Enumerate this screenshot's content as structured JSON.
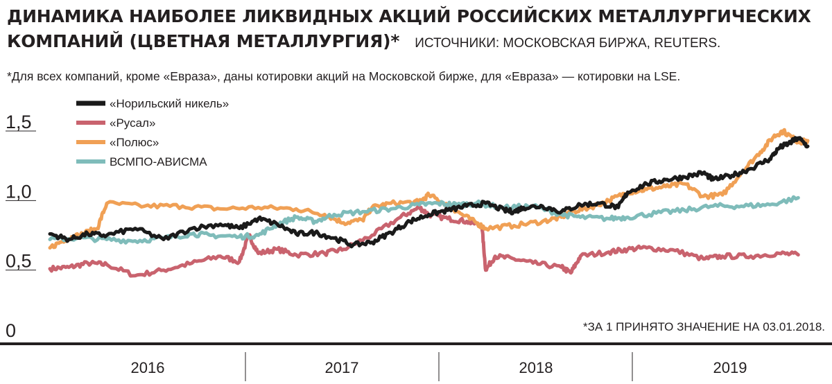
{
  "title": "ДИНАМИКА НАИБОЛЕЕ ЛИКВИДНЫХ АКЦИЙ РОССИЙСКИХ МЕТАЛЛУРГИЧЕСКИХ КОМПАНИЙ (ЦВЕТНАЯ МЕТАЛЛУРГИЯ)*",
  "source": "ИСТОЧНИКИ: МОСКОВСКАЯ БИРЖА, REUTERS.",
  "footnote": "*Для всех компаний, кроме «Евраза», даны котировки акций на Московской бирже, для «Евраза» — котировки на LSE.",
  "normalization_note": "*ЗА 1 ПРИНЯТО ЗНАЧЕНИЕ НА 03.01.2018.",
  "chart_data": {
    "type": "line",
    "xlim": [
      2016.0,
      2019.9
    ],
    "ylim": [
      0,
      1.5
    ],
    "yticks": [
      {
        "value": 0,
        "label": "0"
      },
      {
        "value": 0.5,
        "label": "0,5"
      },
      {
        "value": 1.0,
        "label": "1,0"
      },
      {
        "value": 1.5,
        "label": "1,5"
      }
    ],
    "year_labels": [
      "2016",
      "2017",
      "2018",
      "2019"
    ],
    "legend_position": "top-left",
    "series": [
      {
        "name": "«Норильский никель»",
        "color": "#1a1a1a",
        "points": [
          [
            2016.0,
            0.76
          ],
          [
            2016.1,
            0.72
          ],
          [
            2016.2,
            0.76
          ],
          [
            2016.3,
            0.75
          ],
          [
            2016.45,
            0.8
          ],
          [
            2016.6,
            0.72
          ],
          [
            2016.75,
            0.8
          ],
          [
            2016.9,
            0.83
          ],
          [
            2017.0,
            0.8
          ],
          [
            2017.1,
            0.87
          ],
          [
            2017.2,
            0.83
          ],
          [
            2017.3,
            0.76
          ],
          [
            2017.4,
            0.77
          ],
          [
            2017.5,
            0.73
          ],
          [
            2017.6,
            0.68
          ],
          [
            2017.7,
            0.7
          ],
          [
            2017.8,
            0.77
          ],
          [
            2017.9,
            0.85
          ],
          [
            2018.0,
            0.9
          ],
          [
            2018.1,
            0.93
          ],
          [
            2018.2,
            0.96
          ],
          [
            2018.3,
            0.98
          ],
          [
            2018.4,
            0.93
          ],
          [
            2018.45,
            0.92
          ],
          [
            2018.5,
            0.95
          ],
          [
            2018.6,
            0.96
          ],
          [
            2018.7,
            0.92
          ],
          [
            2018.8,
            0.97
          ],
          [
            2018.9,
            0.98
          ],
          [
            2019.0,
            0.95
          ],
          [
            2019.05,
            1.06
          ],
          [
            2019.15,
            1.12
          ],
          [
            2019.25,
            1.15
          ],
          [
            2019.35,
            1.17
          ],
          [
            2019.45,
            1.2
          ],
          [
            2019.5,
            1.15
          ],
          [
            2019.6,
            1.18
          ],
          [
            2019.7,
            1.23
          ],
          [
            2019.8,
            1.3
          ],
          [
            2019.85,
            1.38
          ],
          [
            2019.9,
            1.41
          ],
          [
            2019.95,
            1.45
          ],
          [
            2020.0,
            1.39
          ]
        ]
      },
      {
        "name": "«Русал»",
        "color": "#c9636e",
        "points": [
          [
            2016.0,
            0.51
          ],
          [
            2016.1,
            0.52
          ],
          [
            2016.2,
            0.55
          ],
          [
            2016.3,
            0.54
          ],
          [
            2016.45,
            0.46
          ],
          [
            2016.6,
            0.5
          ],
          [
            2016.75,
            0.55
          ],
          [
            2016.9,
            0.6
          ],
          [
            2017.0,
            0.56
          ],
          [
            2017.05,
            0.75
          ],
          [
            2017.1,
            0.62
          ],
          [
            2017.2,
            0.65
          ],
          [
            2017.3,
            0.61
          ],
          [
            2017.45,
            0.62
          ],
          [
            2017.55,
            0.65
          ],
          [
            2017.7,
            0.75
          ],
          [
            2017.85,
            0.88
          ],
          [
            2017.95,
            0.95
          ],
          [
            2018.0,
            0.9
          ],
          [
            2018.1,
            0.87
          ],
          [
            2018.2,
            0.85
          ],
          [
            2018.28,
            0.82
          ],
          [
            2018.3,
            0.5
          ],
          [
            2018.35,
            0.6
          ],
          [
            2018.45,
            0.58
          ],
          [
            2018.55,
            0.55
          ],
          [
            2018.7,
            0.52
          ],
          [
            2018.75,
            0.48
          ],
          [
            2018.8,
            0.6
          ],
          [
            2018.95,
            0.63
          ],
          [
            2019.05,
            0.65
          ],
          [
            2019.15,
            0.66
          ],
          [
            2019.3,
            0.64
          ],
          [
            2019.45,
            0.58
          ],
          [
            2019.55,
            0.6
          ],
          [
            2019.7,
            0.6
          ],
          [
            2019.85,
            0.62
          ],
          [
            2019.95,
            0.61
          ]
        ]
      },
      {
        "name": "«Полюс»",
        "color": "#f0a055",
        "points": [
          [
            2016.0,
            0.66
          ],
          [
            2016.08,
            0.72
          ],
          [
            2016.15,
            0.75
          ],
          [
            2016.25,
            0.8
          ],
          [
            2016.3,
            0.98
          ],
          [
            2016.5,
            0.96
          ],
          [
            2016.7,
            0.96
          ],
          [
            2016.9,
            0.94
          ],
          [
            2017.1,
            0.95
          ],
          [
            2017.3,
            0.94
          ],
          [
            2017.45,
            0.9
          ],
          [
            2017.55,
            0.84
          ],
          [
            2017.65,
            0.86
          ],
          [
            2017.7,
            0.95
          ],
          [
            2017.8,
            0.98
          ],
          [
            2017.95,
            0.99
          ],
          [
            2018.0,
            1.04
          ],
          [
            2018.1,
            0.97
          ],
          [
            2018.15,
            0.92
          ],
          [
            2018.25,
            0.84
          ],
          [
            2018.3,
            0.8
          ],
          [
            2018.45,
            0.82
          ],
          [
            2018.6,
            0.85
          ],
          [
            2018.7,
            0.88
          ],
          [
            2018.75,
            0.92
          ],
          [
            2018.85,
            0.95
          ],
          [
            2018.95,
            1.0
          ],
          [
            2019.05,
            1.06
          ],
          [
            2019.15,
            1.08
          ],
          [
            2019.25,
            1.1
          ],
          [
            2019.35,
            1.12
          ],
          [
            2019.45,
            1.03
          ],
          [
            2019.55,
            1.04
          ],
          [
            2019.65,
            1.2
          ],
          [
            2019.75,
            1.35
          ],
          [
            2019.82,
            1.46
          ],
          [
            2019.87,
            1.5
          ],
          [
            2019.95,
            1.42
          ],
          [
            2020.0,
            1.43
          ]
        ]
      },
      {
        "name": "ВСМПО-АВИСМА",
        "color": "#7fbcba",
        "points": [
          [
            2016.0,
            0.72
          ],
          [
            2016.15,
            0.73
          ],
          [
            2016.3,
            0.72
          ],
          [
            2016.45,
            0.71
          ],
          [
            2016.6,
            0.73
          ],
          [
            2016.75,
            0.76
          ],
          [
            2016.85,
            0.75
          ],
          [
            2017.0,
            0.74
          ],
          [
            2017.1,
            0.75
          ],
          [
            2017.2,
            0.83
          ],
          [
            2017.3,
            0.88
          ],
          [
            2017.4,
            0.85
          ],
          [
            2017.5,
            0.9
          ],
          [
            2017.65,
            0.92
          ],
          [
            2017.8,
            0.94
          ],
          [
            2017.95,
            0.97
          ],
          [
            2018.05,
            0.98
          ],
          [
            2018.15,
            0.97
          ],
          [
            2018.25,
            0.98
          ],
          [
            2018.4,
            0.95
          ],
          [
            2018.55,
            0.96
          ],
          [
            2018.7,
            0.9
          ],
          [
            2018.8,
            0.88
          ],
          [
            2018.95,
            0.87
          ],
          [
            2019.05,
            0.88
          ],
          [
            2019.2,
            0.91
          ],
          [
            2019.35,
            0.93
          ],
          [
            2019.5,
            0.96
          ],
          [
            2019.65,
            0.96
          ],
          [
            2019.8,
            0.97
          ],
          [
            2019.95,
            1.02
          ]
        ]
      }
    ]
  }
}
